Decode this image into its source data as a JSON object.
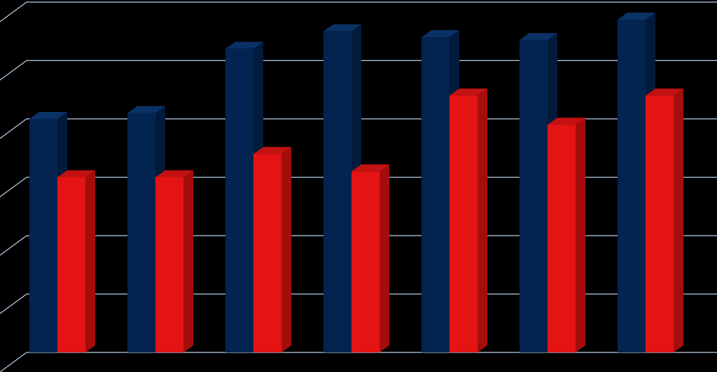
{
  "chart_data": {
    "type": "bar",
    "categories": [
      "",
      "",
      "",
      "",
      "",
      "",
      ""
    ],
    "series": [
      {
        "values": [
          4.0,
          4.1,
          5.2,
          5.5,
          5.4,
          5.35,
          5.7
        ]
      },
      {
        "values": [
          3.0,
          3.0,
          3.4,
          3.1,
          4.4,
          3.9,
          4.4
        ]
      }
    ],
    "ylim": [
      0,
      6
    ],
    "grid": true,
    "legend": "none"
  },
  "colors": {
    "background": "#000000",
    "gridline": "#b9cfe8",
    "series_1_front": "#032450",
    "series_1_side": "#021a3b",
    "series_1_top": "#0b3266",
    "series_2_front": "#e41414",
    "series_2_side": "#a50d0d",
    "series_2_top": "#c21212"
  }
}
